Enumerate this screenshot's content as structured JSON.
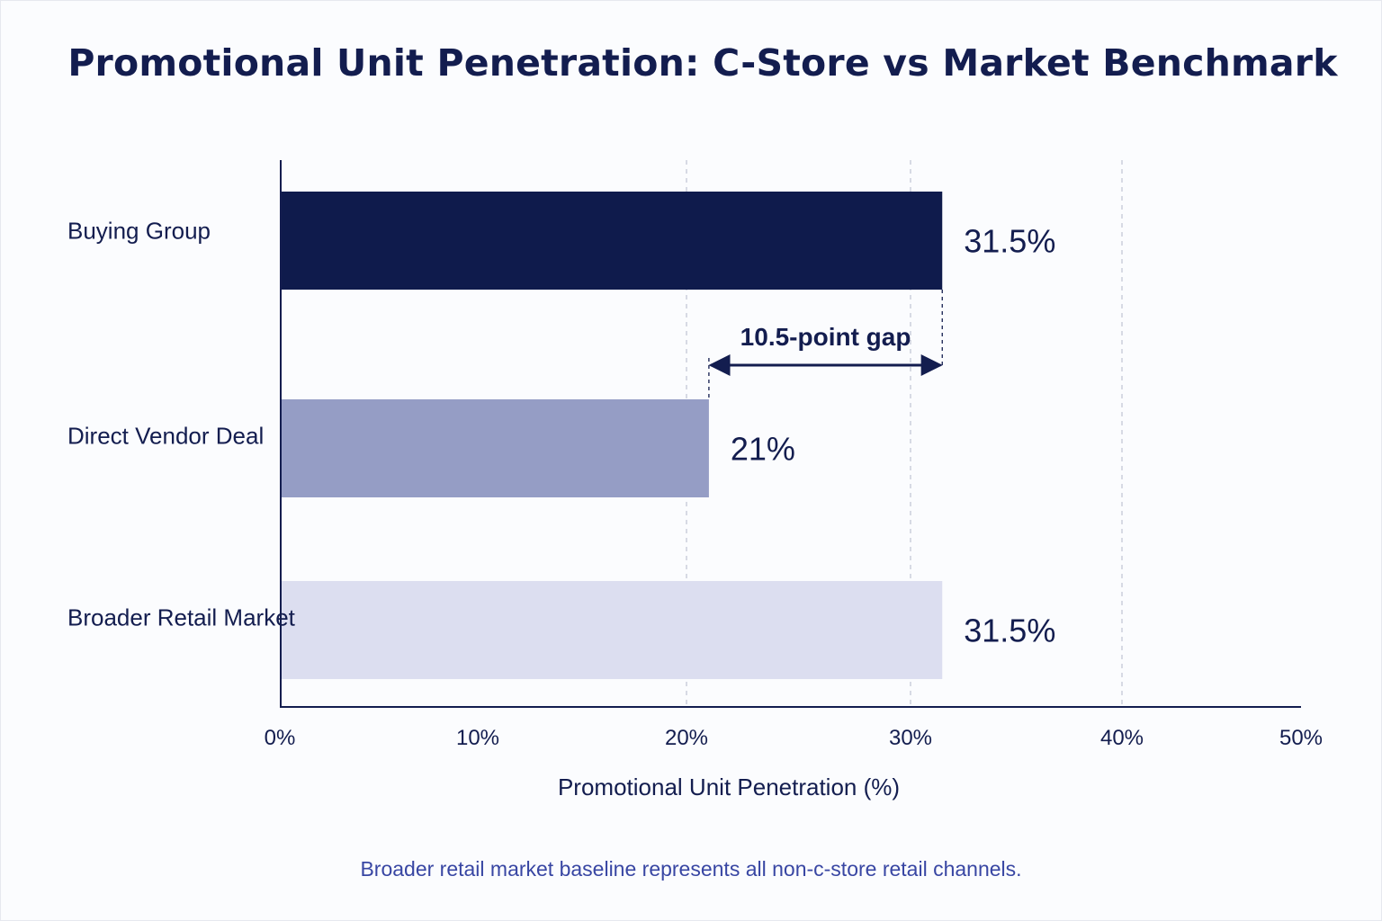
{
  "chart_data": {
    "type": "bar",
    "orientation": "horizontal",
    "title": "Promotional Unit Penetration: C-Store vs Market Benchmark",
    "categories": [
      "Buying Group",
      "Direct Vendor Deal",
      "Broader Retail Market"
    ],
    "values": [
      31.5,
      21,
      31.5
    ],
    "value_labels": [
      "31.5%",
      "21%",
      "31.5%"
    ],
    "bar_colors": [
      "#0f1b4c",
      "#959dc5",
      "#dcdef0"
    ],
    "xlabel": "Promotional Unit Penetration (%)",
    "ylabel": "",
    "xlim": [
      0,
      50
    ],
    "xticks": [
      0,
      10,
      20,
      30,
      40,
      50
    ],
    "xtick_labels": [
      "0%",
      "10%",
      "20%",
      "30%",
      "40%",
      "50%"
    ],
    "grid": "vertical dashed",
    "annotation": {
      "text": "10.5-point gap",
      "from": 21,
      "to": 31.5
    },
    "footnote": "Broader retail market baseline represents all non-c-store retail channels."
  },
  "colors": {
    "title": "#131d4f",
    "axis": "#131d4f",
    "grid": "#c4c8d6",
    "footnote": "#3846a3"
  }
}
